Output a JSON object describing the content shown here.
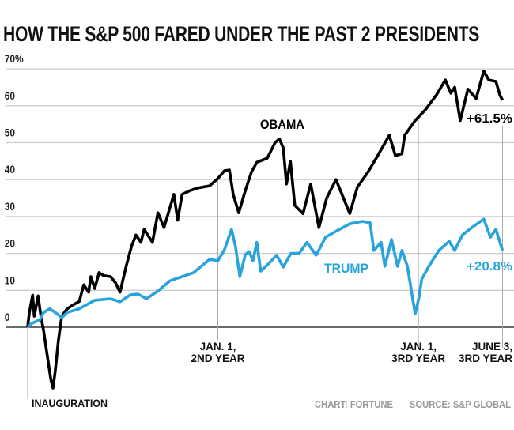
{
  "chart_data": {
    "type": "line",
    "title": "HOW THE S&P 500 FARED UNDER THE PAST 2 PRESIDENTS",
    "ylim": [
      -20,
      70
    ],
    "y_ticks": [
      "0",
      "10",
      "20",
      "30",
      "40",
      "50",
      "60",
      "70%"
    ],
    "y_tick_values": [
      0,
      10,
      20,
      30,
      40,
      50,
      60,
      70
    ],
    "grid": true,
    "x_markers": [
      {
        "x": "Y1-01-20",
        "label": [
          "INAUGURATION"
        ]
      },
      {
        "x": "Y2-01-01",
        "label": [
          "JAN. 1,",
          "2ND YEAR"
        ]
      },
      {
        "x": "Y3-01-01",
        "label": [
          "JAN. 1,",
          "3RD YEAR"
        ]
      },
      {
        "x": "Y3-06-03",
        "label": [
          "JUNE 3,",
          "3RD YEAR"
        ]
      }
    ],
    "series": [
      {
        "name": "OBAMA",
        "color": "#000000",
        "end_label": "+61.5%",
        "points": [
          [
            "Y1-01-20",
            0
          ],
          [
            "Y1-01-23",
            4
          ],
          [
            "Y1-01-29",
            8.7
          ],
          [
            "Y1-02-01",
            3
          ],
          [
            "Y1-02-08",
            8.5
          ],
          [
            "Y1-02-13",
            3
          ],
          [
            "Y1-02-18",
            -1
          ],
          [
            "Y1-02-25",
            -8
          ],
          [
            "Y1-03-03",
            -14
          ],
          [
            "Y1-03-07",
            -16.5
          ],
          [
            "Y1-03-11",
            -12
          ],
          [
            "Y1-03-17",
            -3.5
          ],
          [
            "Y1-03-23",
            3
          ],
          [
            "Y1-04-02",
            5
          ],
          [
            "Y1-04-12",
            6
          ],
          [
            "Y1-04-24",
            7
          ],
          [
            "Y1-05-02",
            11.5
          ],
          [
            "Y1-05-11",
            9.5
          ],
          [
            "Y1-05-15",
            13.7
          ],
          [
            "Y1-05-22",
            10.5
          ],
          [
            "Y1-05-30",
            14.8
          ],
          [
            "Y1-06-07",
            14
          ],
          [
            "Y1-06-20",
            13.7
          ],
          [
            "Y1-06-29",
            12
          ],
          [
            "Y1-07-07",
            9.5
          ],
          [
            "Y1-07-19",
            17
          ],
          [
            "Y1-07-28",
            22
          ],
          [
            "Y1-08-05",
            25
          ],
          [
            "Y1-08-14",
            23
          ],
          [
            "Y1-08-20",
            26.5
          ],
          [
            "Y1-09-04",
            23
          ],
          [
            "Y1-09-14",
            31
          ],
          [
            "Y1-09-25",
            27
          ],
          [
            "Y1-10-13",
            36
          ],
          [
            "Y1-10-20",
            29
          ],
          [
            "Y1-10-28",
            36
          ],
          [
            "Y1-11-11",
            37
          ],
          [
            "Y1-11-25",
            37.7
          ],
          [
            "Y1-12-17",
            38.3
          ],
          [
            "Y2-01-01",
            40.3
          ],
          [
            "Y2-01-13",
            42.4
          ],
          [
            "Y2-01-22",
            42.6
          ],
          [
            "Y2-01-29",
            36
          ],
          [
            "Y2-02-08",
            31
          ],
          [
            "Y2-02-20",
            37
          ],
          [
            "Y2-03-03",
            42
          ],
          [
            "Y2-03-13",
            44.7
          ],
          [
            "Y2-04-01",
            45.8
          ],
          [
            "Y2-04-15",
            50
          ],
          [
            "Y2-04-23",
            51
          ],
          [
            "Y2-04-30",
            48.6
          ],
          [
            "Y2-05-06",
            38.8
          ],
          [
            "Y2-05-13",
            45
          ],
          [
            "Y2-05-21",
            33
          ],
          [
            "Y2-06-05",
            30.8
          ],
          [
            "Y2-06-19",
            38.8
          ],
          [
            "Y2-07-04",
            27
          ],
          [
            "Y2-07-18",
            35
          ],
          [
            "Y2-08-04",
            40
          ],
          [
            "Y2-08-29",
            30.8
          ],
          [
            "Y2-09-12",
            38
          ],
          [
            "Y2-10-01",
            42
          ],
          [
            "Y2-10-19",
            46.5
          ],
          [
            "Y2-11-09",
            52
          ],
          [
            "Y2-11-20",
            46.5
          ],
          [
            "Y2-12-02",
            47
          ],
          [
            "Y2-12-07",
            52
          ],
          [
            "Y2-12-26",
            56
          ],
          [
            "Y3-01-14",
            59
          ],
          [
            "Y3-02-03",
            63
          ],
          [
            "Y3-02-19",
            67
          ],
          [
            "Y3-03-01",
            63.4
          ],
          [
            "Y3-03-08",
            65
          ],
          [
            "Y3-03-18",
            56
          ],
          [
            "Y3-04-01",
            64.5
          ],
          [
            "Y3-04-16",
            62
          ],
          [
            "Y3-04-30",
            69.4
          ],
          [
            "Y3-05-09",
            67
          ],
          [
            "Y3-05-22",
            66.6
          ],
          [
            "Y3-05-29",
            63
          ],
          [
            "Y3-06-03",
            61.5
          ]
        ]
      },
      {
        "name": "TRUMP",
        "color": "#29a3dc",
        "end_label": "+20.8%",
        "points": [
          [
            "Y1-01-20",
            0
          ],
          [
            "Y1-01-27",
            1
          ],
          [
            "Y1-02-11",
            2
          ],
          [
            "Y1-02-18",
            4
          ],
          [
            "Y1-03-01",
            5
          ],
          [
            "Y1-03-11",
            4
          ],
          [
            "Y1-03-23",
            2.6
          ],
          [
            "Y1-04-02",
            4
          ],
          [
            "Y1-04-24",
            5
          ],
          [
            "Y1-05-22",
            7.3
          ],
          [
            "Y1-06-20",
            7.7
          ],
          [
            "Y1-07-07",
            6.9
          ],
          [
            "Y1-07-26",
            8.8
          ],
          [
            "Y1-08-09",
            9
          ],
          [
            "Y1-08-24",
            7.7
          ],
          [
            "Y1-09-14",
            9.8
          ],
          [
            "Y1-10-06",
            12.6
          ],
          [
            "Y1-10-28",
            13.7
          ],
          [
            "Y1-11-18",
            14.8
          ],
          [
            "Y1-12-17",
            18.4
          ],
          [
            "Y2-01-01",
            18
          ],
          [
            "Y2-01-13",
            21
          ],
          [
            "Y2-01-26",
            26.5
          ],
          [
            "Y2-02-02",
            22
          ],
          [
            "Y2-02-10",
            13.7
          ],
          [
            "Y2-02-20",
            19.7
          ],
          [
            "Y2-02-27",
            20.5
          ],
          [
            "Y2-03-06",
            18
          ],
          [
            "Y2-03-13",
            23
          ],
          [
            "Y2-03-20",
            15.2
          ],
          [
            "Y2-04-04",
            17.3
          ],
          [
            "Y2-04-18",
            19.5
          ],
          [
            "Y2-04-30",
            16.3
          ],
          [
            "Y2-05-14",
            20
          ],
          [
            "Y2-05-29",
            20
          ],
          [
            "Y2-06-12",
            23
          ],
          [
            "Y2-06-29",
            19.5
          ],
          [
            "Y2-07-16",
            24.4
          ],
          [
            "Y2-08-04",
            26
          ],
          [
            "Y2-08-29",
            28
          ],
          [
            "Y2-09-21",
            28.7
          ],
          [
            "Y2-10-05",
            28.3
          ],
          [
            "Y2-10-12",
            20.8
          ],
          [
            "Y2-10-25",
            23
          ],
          [
            "Y2-11-01",
            16.5
          ],
          [
            "Y2-11-13",
            23.8
          ],
          [
            "Y2-11-24",
            16.5
          ],
          [
            "Y2-12-02",
            20.8
          ],
          [
            "Y2-12-12",
            16.5
          ],
          [
            "Y2-12-26",
            3.6
          ],
          [
            "Y3-01-02",
            8
          ],
          [
            "Y3-01-07",
            13
          ],
          [
            "Y3-01-20",
            16.5
          ],
          [
            "Y3-02-07",
            20.8
          ],
          [
            "Y3-02-26",
            23.3
          ],
          [
            "Y3-03-08",
            20.8
          ],
          [
            "Y3-03-22",
            25
          ],
          [
            "Y3-04-10",
            27.2
          ],
          [
            "Y3-04-30",
            29.3
          ],
          [
            "Y3-05-12",
            24.4
          ],
          [
            "Y3-05-22",
            26.5
          ],
          [
            "Y3-06-03",
            20.8
          ]
        ]
      }
    ]
  },
  "credits": {
    "chart": "CHART: FORTUNE",
    "source": "SOURCE: S&P GLOBAL"
  }
}
